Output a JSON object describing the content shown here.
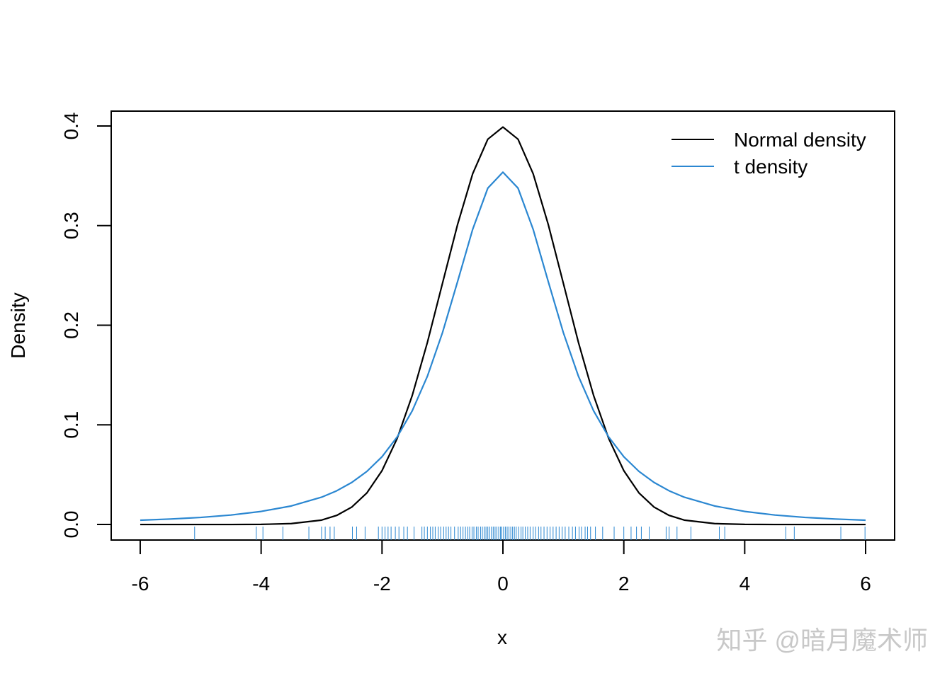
{
  "chart_data": {
    "type": "line",
    "x_label": "x",
    "y_label": "Density",
    "x": [
      -6,
      -5.5,
      -5,
      -4.5,
      -4,
      -3.5,
      -3,
      -2.75,
      -2.5,
      -2.25,
      -2,
      -1.75,
      -1.5,
      -1.25,
      -1,
      -0.75,
      -0.5,
      -0.25,
      0,
      0.25,
      0.5,
      0.75,
      1,
      1.25,
      1.5,
      1.75,
      2,
      2.25,
      2.5,
      2.75,
      3,
      3.5,
      4,
      4.5,
      5,
      5.5,
      6
    ],
    "series": [
      {
        "name": "Normal density",
        "color": "#000000",
        "values": [
          0,
          0,
          0,
          0,
          0.0001,
          0.0009,
          0.0044,
          0.0091,
          0.0175,
          0.0317,
          0.054,
          0.0863,
          0.1295,
          0.1826,
          0.242,
          0.3011,
          0.3521,
          0.3867,
          0.3989,
          0.3867,
          0.3521,
          0.3011,
          0.242,
          0.1826,
          0.1295,
          0.0863,
          0.054,
          0.0317,
          0.0175,
          0.0091,
          0.0044,
          0.0009,
          0.0001,
          0,
          0,
          0,
          0
        ]
      },
      {
        "name": "t density",
        "color": "#2b87d1",
        "values": [
          0.0043,
          0.0055,
          0.0071,
          0.0095,
          0.0131,
          0.0186,
          0.0274,
          0.0338,
          0.0422,
          0.0533,
          0.068,
          0.0878,
          0.1141,
          0.1487,
          0.1925,
          0.2438,
          0.2963,
          0.3376,
          0.3536,
          0.3376,
          0.2963,
          0.2438,
          0.1925,
          0.1487,
          0.1141,
          0.0878,
          0.068,
          0.0533,
          0.0422,
          0.0338,
          0.0274,
          0.0186,
          0.0131,
          0.0095,
          0.0071,
          0.0055,
          0.0043
        ]
      }
    ],
    "rug": {
      "color": "#2b87d1",
      "values": [
        -5.1,
        -4.08,
        -3.97,
        -3.64,
        -3.21,
        -3.0,
        -2.94,
        -2.86,
        -2.79,
        -2.49,
        -2.42,
        -2.28,
        -2.06,
        -2.0,
        -1.95,
        -1.9,
        -1.85,
        -1.78,
        -1.72,
        -1.64,
        -1.58,
        -1.47,
        -1.34,
        -1.3,
        -1.25,
        -1.2,
        -1.16,
        -1.12,
        -1.07,
        -1.03,
        -0.98,
        -0.94,
        -0.9,
        -0.86,
        -0.8,
        -0.74,
        -0.7,
        -0.66,
        -0.62,
        -0.58,
        -0.55,
        -0.51,
        -0.48,
        -0.44,
        -0.41,
        -0.37,
        -0.34,
        -0.31,
        -0.28,
        -0.25,
        -0.22,
        -0.19,
        -0.16,
        -0.13,
        -0.1,
        -0.07,
        -0.04,
        -0.02,
        0.01,
        0.04,
        0.07,
        0.1,
        0.13,
        0.16,
        0.19,
        0.22,
        0.26,
        0.3,
        0.33,
        0.37,
        0.41,
        0.45,
        0.5,
        0.54,
        0.59,
        0.63,
        0.68,
        0.73,
        0.78,
        0.83,
        0.88,
        0.93,
        0.98,
        1.03,
        1.09,
        1.15,
        1.2,
        1.26,
        1.3,
        1.36,
        1.4,
        1.45,
        1.53,
        1.65,
        1.84,
        2.0,
        2.12,
        2.21,
        2.29,
        2.42,
        2.7,
        2.75,
        2.88,
        3.11,
        3.58,
        3.67,
        4.68,
        4.82,
        5.59,
        5.99
      ]
    },
    "xlim": [
      -6.48,
      6.48
    ],
    "xticks": [
      -6,
      -4,
      -2,
      0,
      2,
      4,
      6
    ],
    "ylim": [
      -0.0156,
      0.4149
    ],
    "yticks": [
      0.0,
      0.1,
      0.2,
      0.3,
      0.4
    ],
    "ytick_labels": [
      "0.0",
      "0.1",
      "0.2",
      "0.3",
      "0.4"
    ],
    "legend": "top-right"
  },
  "watermark": "知乎 @暗月魔术师"
}
